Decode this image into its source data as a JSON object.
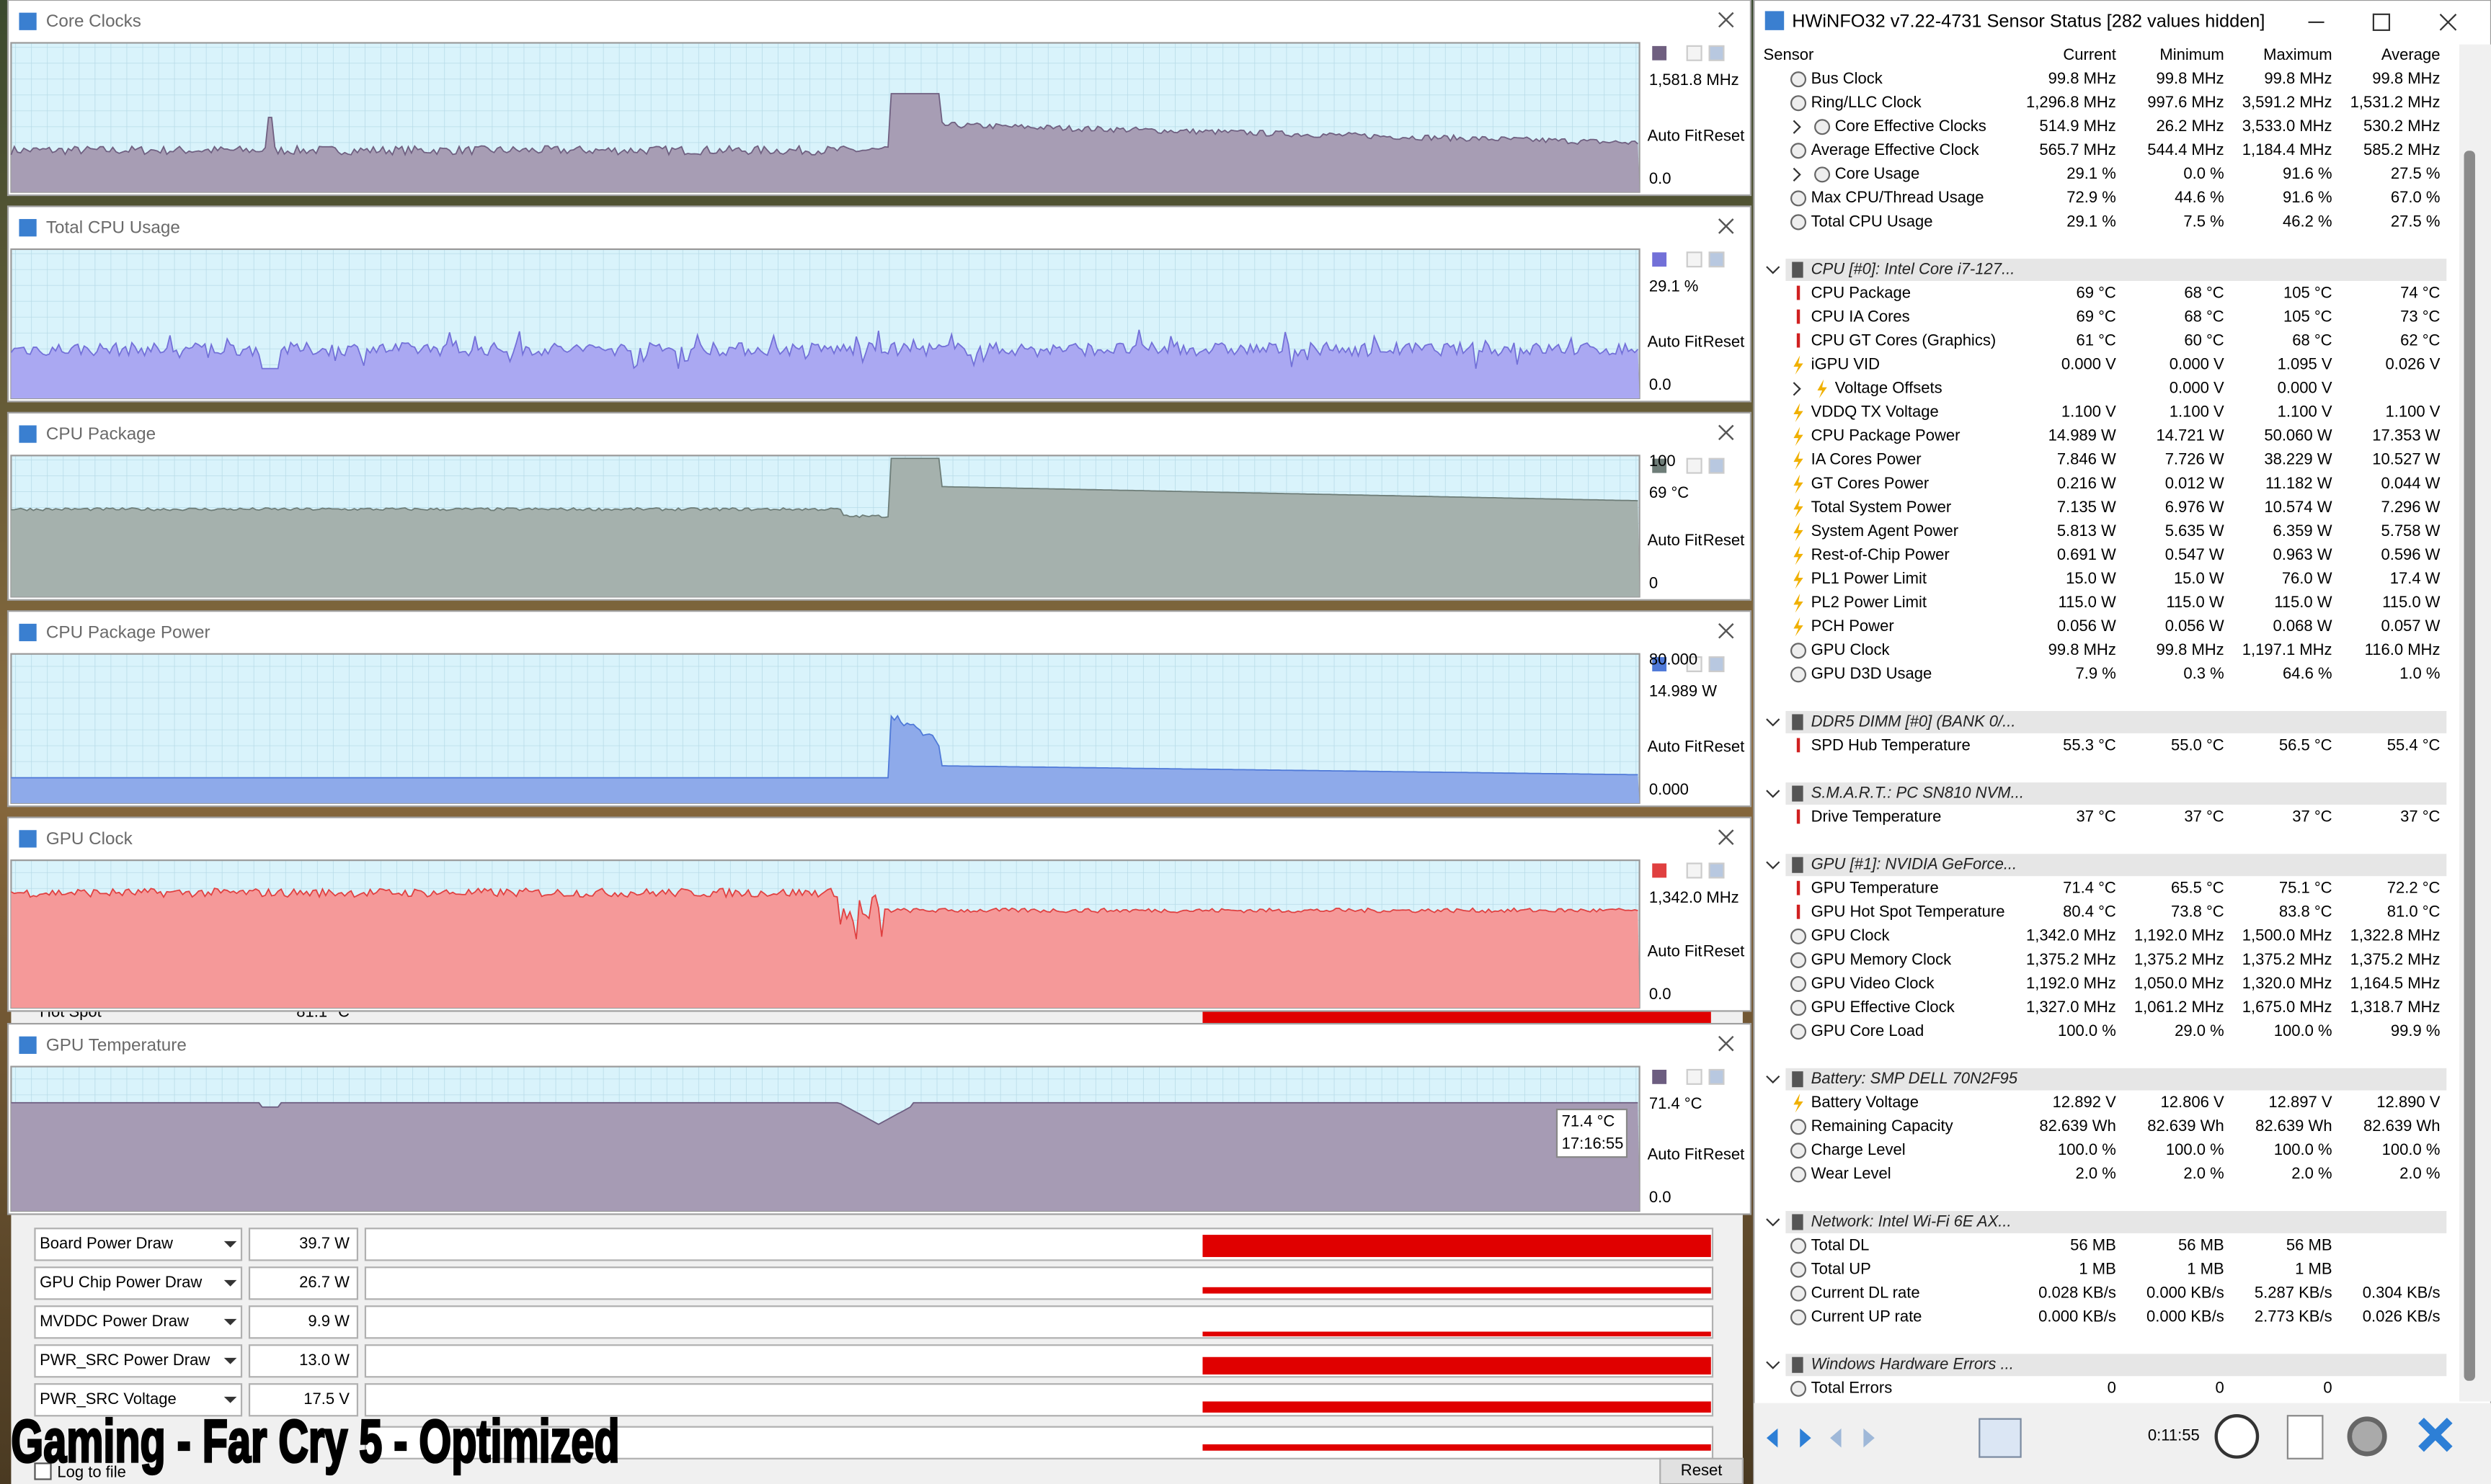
{
  "graph_windows": [
    {
      "title": "Core Clocks",
      "current": "1,581.8 MHz",
      "scale_bottom": "0.0",
      "color": "#a79db4",
      "line": "#6f5f80"
    },
    {
      "title": "Total CPU Usage",
      "current": "29.1 %",
      "scale_bottom": "0.0",
      "color": "#aaa8f2",
      "line": "#7270d8"
    },
    {
      "title": "CPU Package",
      "scale_top": "100",
      "current": "69 °C",
      "scale_bottom": "0",
      "color": "#a5b1ad",
      "line": "#6e7d78"
    },
    {
      "title": "CPU Package Power",
      "scale_top": "80.000",
      "current": "14.989 W",
      "scale_bottom": "0.000",
      "color": "#8eaaea",
      "line": "#4f79d8"
    },
    {
      "title": "GPU Clock",
      "current": "1,342.0 MHz",
      "scale_bottom": "0.0",
      "color": "#f59999",
      "line": "#e04040"
    },
    {
      "title": "GPU Temperature",
      "current": "71.4 °C",
      "scale_bottom": "0.0",
      "color": "#a69bb4",
      "line": "#6c5d80"
    }
  ],
  "graph_buttons": {
    "auto_fit": "Auto Fit",
    "reset": "Reset"
  },
  "tooltip": {
    "value": "71.4 °C",
    "time": "17:16:55"
  },
  "hwinfo": {
    "title": "HWiNFO32 v7.22-4731 Sensor Status [282 values hidden]",
    "columns": [
      "Sensor",
      "Current",
      "Minimum",
      "Maximum",
      "Average"
    ],
    "alert_color": "#e00000",
    "groups": [
      {
        "rows": [
          {
            "name": "Bus Clock",
            "values": [
              "99.8 MHz",
              "99.8 MHz",
              "99.8 MHz",
              "99.8 MHz"
            ],
            "icon": "clock"
          },
          {
            "name": "Ring/LLC Clock",
            "values": [
              "1,296.8 MHz",
              "997.6 MHz",
              "3,591.2 MHz",
              "1,531.2 MHz"
            ],
            "icon": "clock"
          },
          {
            "name": "Core Effective Clocks",
            "values": [
              "514.9 MHz",
              "26.2 MHz",
              "3,533.0 MHz",
              "530.2 MHz"
            ],
            "icon": "clock",
            "expandable": true
          },
          {
            "name": "Average Effective Clock",
            "values": [
              "565.7 MHz",
              "544.4 MHz",
              "1,184.4 MHz",
              "585.2 MHz"
            ],
            "icon": "clock"
          },
          {
            "name": "Core Usage",
            "values": [
              "29.1 %",
              "0.0 %",
              "91.6 %",
              "27.5 %"
            ],
            "icon": "clock",
            "expandable": true
          },
          {
            "name": "Max CPU/Thread Usage",
            "values": [
              "72.9 %",
              "44.6 %",
              "91.6 %",
              "67.0 %"
            ],
            "icon": "clock"
          },
          {
            "name": "Total CPU Usage",
            "values": [
              "29.1 %",
              "7.5 %",
              "46.2 %",
              "27.5 %"
            ],
            "icon": "clock"
          }
        ]
      },
      {
        "name": "CPU [#0]: Intel Core i7-127...",
        "rows": [
          {
            "name": "CPU Package",
            "values": [
              "69 °C",
              "68 °C",
              "105 °C",
              "74 °C"
            ],
            "icon": "temp",
            "alert_columns": [
              2
            ]
          },
          {
            "name": "CPU IA Cores",
            "values": [
              "69 °C",
              "68 °C",
              "105 °C",
              "73 °C"
            ],
            "icon": "temp",
            "alert_columns": [
              2
            ]
          },
          {
            "name": "CPU GT Cores (Graphics)",
            "values": [
              "61 °C",
              "60 °C",
              "68 °C",
              "62 °C"
            ],
            "icon": "temp"
          },
          {
            "name": "iGPU VID",
            "values": [
              "0.000 V",
              "0.000 V",
              "1.095 V",
              "0.026 V"
            ],
            "icon": "power"
          },
          {
            "name": "Voltage Offsets",
            "values": [
              null,
              "0.000 V",
              "0.000 V",
              null
            ],
            "icon": "power",
            "expandable": true
          },
          {
            "name": "VDDQ TX Voltage",
            "values": [
              "1.100 V",
              "1.100 V",
              "1.100 V",
              "1.100 V"
            ],
            "icon": "power"
          },
          {
            "name": "CPU Package Power",
            "values": [
              "14.989 W",
              "14.721 W",
              "50.060 W",
              "17.353 W"
            ],
            "icon": "power"
          },
          {
            "name": "IA Cores Power",
            "values": [
              "7.846 W",
              "7.726 W",
              "38.229 W",
              "10.527 W"
            ],
            "icon": "power"
          },
          {
            "name": "GT Cores Power",
            "values": [
              "0.216 W",
              "0.012 W",
              "11.182 W",
              "0.044 W"
            ],
            "icon": "power"
          },
          {
            "name": "Total System Power",
            "values": [
              "7.135 W",
              "6.976 W",
              "10.574 W",
              "7.296 W"
            ],
            "icon": "power"
          },
          {
            "name": "System Agent Power",
            "values": [
              "5.813 W",
              "5.635 W",
              "6.359 W",
              "5.758 W"
            ],
            "icon": "power"
          },
          {
            "name": "Rest-of-Chip Power",
            "values": [
              "0.691 W",
              "0.547 W",
              "0.963 W",
              "0.596 W"
            ],
            "icon": "power"
          },
          {
            "name": "PL1 Power Limit",
            "values": [
              "15.0 W",
              "15.0 W",
              "76.0 W",
              "17.4 W"
            ],
            "icon": "power"
          },
          {
            "name": "PL2 Power Limit",
            "values": [
              "115.0 W",
              "115.0 W",
              "115.0 W",
              "115.0 W"
            ],
            "icon": "power"
          },
          {
            "name": "PCH Power",
            "values": [
              "0.056 W",
              "0.056 W",
              "0.068 W",
              "0.057 W"
            ],
            "icon": "power"
          },
          {
            "name": "GPU Clock",
            "values": [
              "99.8 MHz",
              "99.8 MHz",
              "1,197.1 MHz",
              "116.0 MHz"
            ],
            "icon": "clock"
          },
          {
            "name": "GPU D3D Usage",
            "values": [
              "7.9 %",
              "0.3 %",
              "64.6 %",
              "1.0 %"
            ],
            "icon": "clock"
          }
        ]
      },
      {
        "name": "DDR5 DIMM [#0] (BANK 0/...",
        "rows": [
          {
            "name": "SPD Hub Temperature",
            "values": [
              "55.3 °C",
              "55.0 °C",
              "56.5 °C",
              "55.4 °C"
            ],
            "icon": "temp"
          }
        ]
      },
      {
        "name": "S.M.A.R.T.: PC SN810 NVM...",
        "rows": [
          {
            "name": "Drive Temperature",
            "values": [
              "37 °C",
              "37 °C",
              "37 °C",
              "37 °C"
            ],
            "icon": "temp"
          }
        ]
      },
      {
        "name": "GPU [#1]: NVIDIA GeForce...",
        "rows": [
          {
            "name": "GPU Temperature",
            "values": [
              "71.4 °C",
              "65.5 °C",
              "75.1 °C",
              "72.2 °C"
            ],
            "icon": "temp"
          },
          {
            "name": "GPU Hot Spot Temperature",
            "values": [
              "80.4 °C",
              "73.8 °C",
              "83.8 °C",
              "81.0 °C"
            ],
            "icon": "temp"
          },
          {
            "name": "GPU Clock",
            "values": [
              "1,342.0 MHz",
              "1,192.0 MHz",
              "1,500.0 MHz",
              "1,322.8 MHz"
            ],
            "icon": "clock"
          },
          {
            "name": "GPU Memory Clock",
            "values": [
              "1,375.2 MHz",
              "1,375.2 MHz",
              "1,375.2 MHz",
              "1,375.2 MHz"
            ],
            "icon": "clock"
          },
          {
            "name": "GPU Video Clock",
            "values": [
              "1,192.0 MHz",
              "1,050.0 MHz",
              "1,320.0 MHz",
              "1,164.5 MHz"
            ],
            "icon": "clock"
          },
          {
            "name": "GPU Effective Clock",
            "values": [
              "1,327.0 MHz",
              "1,061.2 MHz",
              "1,675.0 MHz",
              "1,318.7 MHz"
            ],
            "icon": "clock"
          },
          {
            "name": "GPU Core Load",
            "values": [
              "100.0 %",
              "29.0 %",
              "100.0 %",
              "99.9 %"
            ],
            "icon": "clock"
          }
        ]
      },
      {
        "name": "Battery: SMP DELL 70N2F95",
        "rows": [
          {
            "name": "Battery Voltage",
            "values": [
              "12.892 V",
              "12.806 V",
              "12.897 V",
              "12.890 V"
            ],
            "icon": "power"
          },
          {
            "name": "Remaining Capacity",
            "values": [
              "82.639 Wh",
              "82.639 Wh",
              "82.639 Wh",
              "82.639 Wh"
            ],
            "icon": "clock"
          },
          {
            "name": "Charge Level",
            "values": [
              "100.0 %",
              "100.0 %",
              "100.0 %",
              "100.0 %"
            ],
            "icon": "clock"
          },
          {
            "name": "Wear Level",
            "values": [
              "2.0 %",
              "2.0 %",
              "2.0 %",
              "2.0 %"
            ],
            "icon": "clock"
          }
        ]
      },
      {
        "name": "Network: Intel Wi-Fi 6E AX...",
        "rows": [
          {
            "name": "Total DL",
            "values": [
              "56 MB",
              "56 MB",
              "56 MB",
              null
            ],
            "icon": "clock"
          },
          {
            "name": "Total UP",
            "values": [
              "1 MB",
              "1 MB",
              "1 MB",
              null
            ],
            "icon": "clock"
          },
          {
            "name": "Current DL rate",
            "values": [
              "0.028 KB/s",
              "0.000 KB/s",
              "5.287 KB/s",
              "0.304 KB/s"
            ],
            "icon": "clock"
          },
          {
            "name": "Current UP rate",
            "values": [
              "0.000 KB/s",
              "0.000 KB/s",
              "2.773 KB/s",
              "0.026 KB/s"
            ],
            "icon": "clock"
          }
        ]
      },
      {
        "name": "Windows Hardware Errors ...",
        "rows": [
          {
            "name": "Total Errors",
            "values": [
              "0",
              "0",
              "0",
              null
            ],
            "icon": "clock"
          }
        ]
      }
    ],
    "timer": "0:11:55"
  },
  "gpuz": {
    "hot_spot": {
      "label": "Hot Spot",
      "value": "81.1 °C"
    },
    "rows": [
      {
        "label": "Board Power Draw",
        "value": "39.7 W"
      },
      {
        "label": "GPU Chip Power Draw",
        "value": "26.7 W"
      },
      {
        "label": "MVDDC Power Draw",
        "value": "9.9 W"
      },
      {
        "label": "PWR_SRC Power Draw",
        "value": "13.0 W"
      },
      {
        "label": "PWR_SRC Voltage",
        "value": "17.5 V"
      }
    ],
    "log_to_file": "Log to file",
    "reset": "Reset"
  },
  "caption": "Gaming - Far Cry 5 - Optimized"
}
